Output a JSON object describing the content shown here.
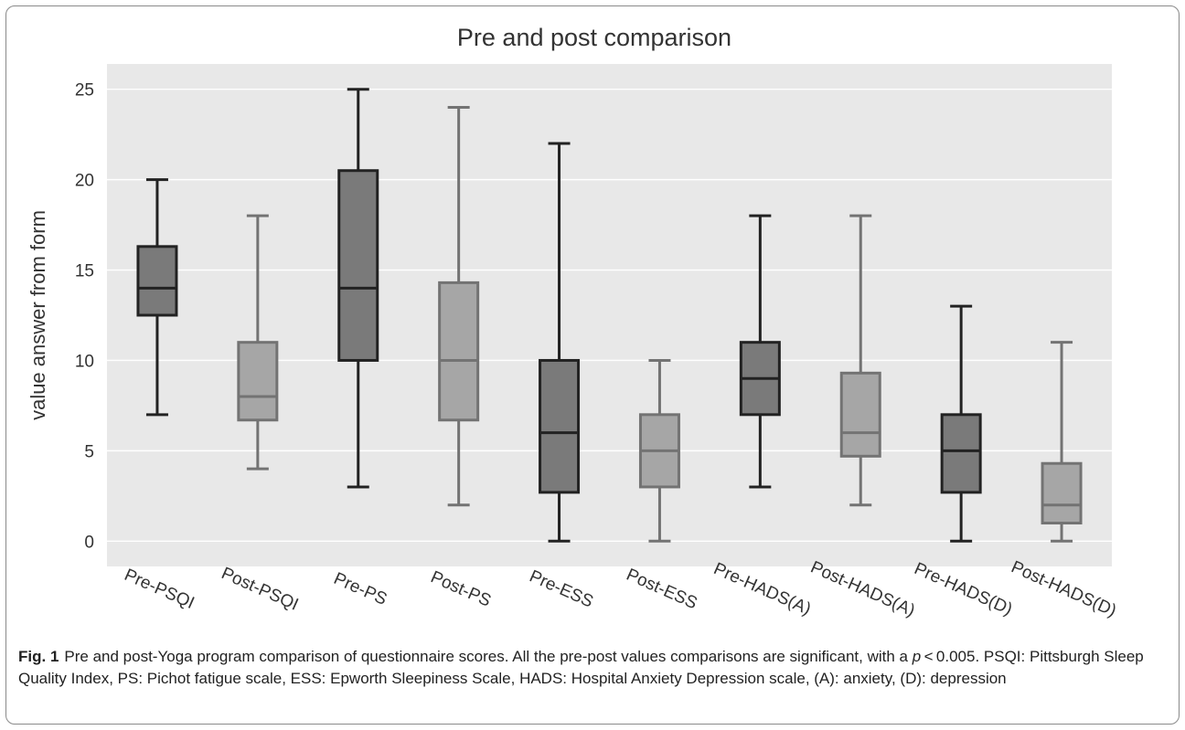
{
  "figure": {
    "label": "Fig. 1",
    "caption_parts": [
      "Pre and post-Yoga program comparison of questionnaire scores. All the pre-post values comparisons are significant, with a ",
      "p",
      " < 0.005. PSQI: Pittsburgh Sleep Quality Index, PS: Pichot fatigue scale, ESS: Epworth Sleepiness Scale, HADS: Hospital Anxiety Depression scale, (A): anxiety, (D): depression"
    ]
  },
  "chart_data": {
    "type": "box",
    "title": "Pre and post comparison",
    "xlabel": "",
    "ylabel": "value answer from form",
    "ylim": [
      -1.4,
      26.4
    ],
    "yticks": [
      0,
      5,
      10,
      15,
      20,
      25
    ],
    "grid": true,
    "legend": "none",
    "colors": {
      "pre_fill": "#7a7a7a",
      "pre_line": "#222222",
      "post_fill": "#a6a6a6",
      "post_line": "#737373",
      "plot_bg": "#e8e8e8",
      "grid": "#ffffff"
    },
    "categories": [
      "Pre-PSQI",
      "Post-PSQI",
      "Pre-PS",
      "Post-PS",
      "Pre-ESS",
      "Post-ESS",
      "Pre-HADS(A)",
      "Post-HADS(A)",
      "Pre-HADS(D)",
      "Post-HADS(D)"
    ],
    "boxes": [
      {
        "label": "Pre-PSQI",
        "group": "pre",
        "min": 7,
        "q1": 12.5,
        "median": 14,
        "q3": 16.3,
        "max": 20
      },
      {
        "label": "Post-PSQI",
        "group": "post",
        "min": 4,
        "q1": 6.7,
        "median": 8,
        "q3": 11,
        "max": 18
      },
      {
        "label": "Pre-PS",
        "group": "pre",
        "min": 3,
        "q1": 10,
        "median": 14,
        "q3": 20.5,
        "max": 25
      },
      {
        "label": "Post-PS",
        "group": "post",
        "min": 2,
        "q1": 6.7,
        "median": 10,
        "q3": 14.3,
        "max": 24
      },
      {
        "label": "Pre-ESS",
        "group": "pre",
        "min": 0,
        "q1": 2.7,
        "median": 6,
        "q3": 10,
        "max": 22
      },
      {
        "label": "Post-ESS",
        "group": "post",
        "min": 0,
        "q1": 3,
        "median": 5,
        "q3": 7,
        "max": 10
      },
      {
        "label": "Pre-HADS(A)",
        "group": "pre",
        "min": 3,
        "q1": 7,
        "median": 9,
        "q3": 11,
        "max": 18
      },
      {
        "label": "Post-HADS(A)",
        "group": "post",
        "min": 2,
        "q1": 4.7,
        "median": 6,
        "q3": 9.3,
        "max": 18
      },
      {
        "label": "Pre-HADS(D)",
        "group": "pre",
        "min": 0,
        "q1": 2.7,
        "median": 5,
        "q3": 7,
        "max": 13
      },
      {
        "label": "Post-HADS(D)",
        "group": "post",
        "min": 0,
        "q1": 1,
        "median": 2,
        "q3": 4.3,
        "max": 11
      }
    ]
  }
}
